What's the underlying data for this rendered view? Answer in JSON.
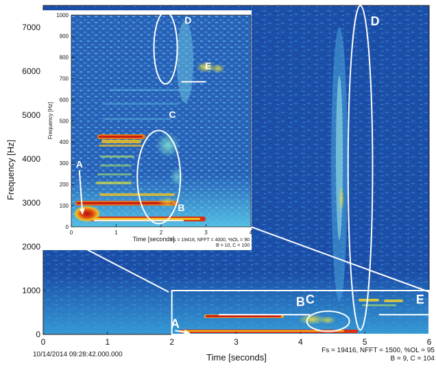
{
  "main": {
    "type": "heatmap",
    "xlabel": "Time [seconds]",
    "ylabel": "Frequency [Hz]",
    "xlim": [
      0,
      6
    ],
    "ylim": [
      0,
      7500
    ],
    "xticks": [
      0,
      1,
      2,
      3,
      4,
      5,
      6
    ],
    "yticks": [
      0,
      1000,
      2000,
      3000,
      4000,
      5000,
      6000,
      7000
    ],
    "timestamp": "10/14/2014 09:28:42.000.000",
    "params_line1": "Fs = 19416, NFFT = 1500, %OL = 95",
    "params_line2": "B = 9, C = 104",
    "zoom_region": {
      "x": [
        2,
        6
      ],
      "y": [
        0,
        1000
      ]
    },
    "annotations": [
      {
        "label": "A",
        "x": 2.05,
        "y": 150,
        "arrow_to": {
          "x": 2.28,
          "y": 30
        }
      },
      {
        "label": "B",
        "x": 4.0,
        "y": 650
      },
      {
        "label": "C",
        "x": 4.15,
        "y": 700
      },
      {
        "label": "D",
        "x": 5.16,
        "y": 7050
      },
      {
        "label": "E",
        "x": 5.86,
        "y": 700
      }
    ],
    "ellipses": [
      {
        "label": "D",
        "cx": 4.93,
        "cy": 3800,
        "rx": 0.19,
        "ry": 3700
      },
      {
        "label": "C",
        "cx": 4.43,
        "cy": 300,
        "rx": 0.33,
        "ry": 230
      }
    ],
    "lines": [
      {
        "label": "B",
        "x": [
          2.73,
          4.15
        ],
        "y": [
          450,
          450
        ]
      },
      {
        "label": "E",
        "x": [
          5.22,
          6.0
        ],
        "y": [
          450,
          450
        ]
      }
    ]
  },
  "inset": {
    "type": "heatmap",
    "xlabel": "Time [seconds]",
    "ylabel": "Frequency [Hz]",
    "xlim": [
      0,
      4
    ],
    "ylim": [
      0,
      1000
    ],
    "xticks": [
      0,
      1,
      2,
      3,
      4
    ],
    "yticks": [
      0,
      100,
      200,
      300,
      400,
      500,
      600,
      700,
      800,
      900,
      1000
    ],
    "params_line1": "Fs = 19416, NFFT = 4000, %OL = 90",
    "params_line2": "B = 10, C = 100",
    "annotations": [
      {
        "label": "A",
        "x": 0.18,
        "y": 280,
        "arrow_to": {
          "x": 0.25,
          "y": 60
        }
      },
      {
        "label": "B",
        "x": 2.45,
        "y": 75
      },
      {
        "label": "C",
        "x": 2.25,
        "y": 515
      },
      {
        "label": "D",
        "x": 2.6,
        "y": 960
      },
      {
        "label": "E",
        "x": 3.05,
        "y": 745
      }
    ],
    "ellipses": [
      {
        "label": "D",
        "cx": 2.1,
        "cy": 845,
        "rx": 0.26,
        "ry": 170
      },
      {
        "label": "C",
        "cx": 1.95,
        "cy": 235,
        "rx": 0.48,
        "ry": 220
      }
    ],
    "lines": [
      {
        "label": "B",
        "x": [
          0.5,
          2.5
        ],
        "y": [
          30,
          30
        ]
      },
      {
        "label": "E",
        "x": [
          2.45,
          3.0
        ],
        "y": [
          685,
          685
        ]
      }
    ]
  }
}
